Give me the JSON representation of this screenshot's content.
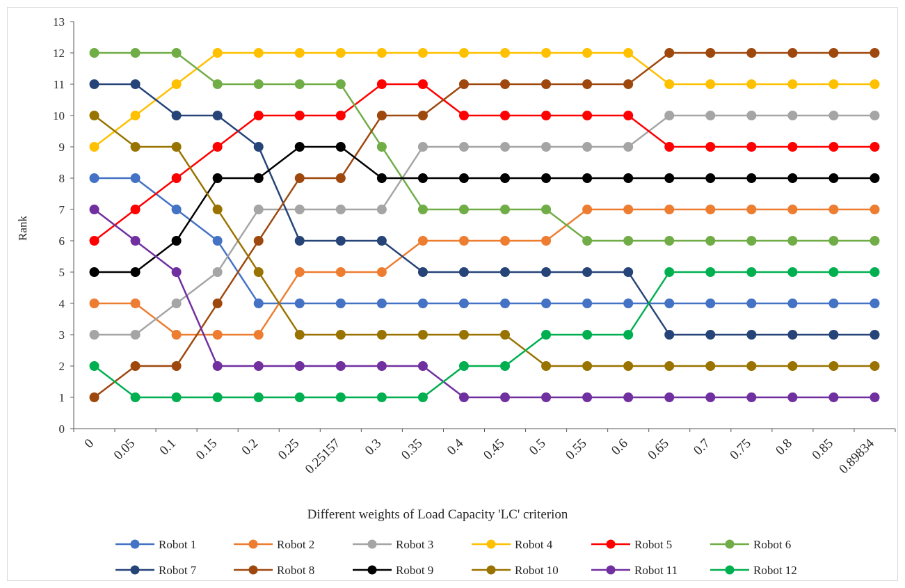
{
  "chart_data": {
    "type": "line",
    "title": "",
    "xlabel": "Different weights of Load Capacity 'LC' criterion",
    "ylabel": "Rank",
    "ylim": [
      0,
      13
    ],
    "yticks": [
      "0",
      "1",
      "2",
      "3",
      "4",
      "5",
      "6",
      "7",
      "8",
      "9",
      "10",
      "11",
      "12",
      "13"
    ],
    "grid": false,
    "legend_position": "bottom",
    "categories": [
      "0",
      "0.05",
      "0.1",
      "0.15",
      "0.2",
      "0.25",
      "0.25157",
      "0.3",
      "0.35",
      "0.4",
      "0.45",
      "0.5",
      "0.55",
      "0.6",
      "0.65",
      "0.7",
      "0.75",
      "0.8",
      "0.85",
      "0.89834"
    ],
    "series": [
      {
        "name": "Robot 1",
        "color": "#4472C4",
        "values": [
          8,
          8,
          7,
          6,
          4,
          4,
          4,
          4,
          4,
          4,
          4,
          4,
          4,
          4,
          4,
          4,
          4,
          4,
          4,
          4
        ]
      },
      {
        "name": "Robot 2",
        "color": "#ED7D31",
        "values": [
          4,
          4,
          3,
          3,
          3,
          5,
          5,
          5,
          6,
          6,
          6,
          6,
          7,
          7,
          7,
          7,
          7,
          7,
          7,
          7
        ]
      },
      {
        "name": "Robot 3",
        "color": "#A5A5A5",
        "values": [
          3,
          3,
          4,
          5,
          7,
          7,
          7,
          7,
          9,
          9,
          9,
          9,
          9,
          9,
          10,
          10,
          10,
          10,
          10,
          10
        ]
      },
      {
        "name": "Robot 4",
        "color": "#FFC000",
        "values": [
          9,
          10,
          11,
          12,
          12,
          12,
          12,
          12,
          12,
          12,
          12,
          12,
          12,
          12,
          11,
          11,
          11,
          11,
          11,
          11
        ]
      },
      {
        "name": "Robot 5",
        "color": "#FF0000",
        "values": [
          6,
          7,
          8,
          9,
          10,
          10,
          10,
          11,
          11,
          10,
          10,
          10,
          10,
          10,
          9,
          9,
          9,
          9,
          9,
          9
        ]
      },
      {
        "name": "Robot 6",
        "color": "#70AD47",
        "values": [
          12,
          12,
          12,
          11,
          11,
          11,
          11,
          9,
          7,
          7,
          7,
          7,
          6,
          6,
          6,
          6,
          6,
          6,
          6,
          6
        ]
      },
      {
        "name": "Robot 7",
        "color": "#264478",
        "values": [
          11,
          11,
          10,
          10,
          9,
          6,
          6,
          6,
          5,
          5,
          5,
          5,
          5,
          5,
          3,
          3,
          3,
          3,
          3,
          3
        ]
      },
      {
        "name": "Robot 8",
        "color": "#9E480E",
        "values": [
          1,
          2,
          2,
          4,
          6,
          8,
          8,
          10,
          10,
          11,
          11,
          11,
          11,
          11,
          12,
          12,
          12,
          12,
          12,
          12
        ]
      },
      {
        "name": "Robot 9",
        "color": "#000000",
        "values": [
          5,
          5,
          6,
          8,
          8,
          9,
          9,
          8,
          8,
          8,
          8,
          8,
          8,
          8,
          8,
          8,
          8,
          8,
          8,
          8
        ]
      },
      {
        "name": "Robot 10",
        "color": "#997300",
        "values": [
          10,
          9,
          9,
          7,
          5,
          3,
          3,
          3,
          3,
          3,
          3,
          2,
          2,
          2,
          2,
          2,
          2,
          2,
          2,
          2
        ]
      },
      {
        "name": "Robot 11",
        "color": "#7030A0",
        "values": [
          7,
          6,
          5,
          2,
          2,
          2,
          2,
          2,
          2,
          1,
          1,
          1,
          1,
          1,
          1,
          1,
          1,
          1,
          1,
          1
        ]
      },
      {
        "name": "Robot 12",
        "color": "#00B050",
        "values": [
          2,
          1,
          1,
          1,
          1,
          1,
          1,
          1,
          1,
          2,
          2,
          3,
          3,
          3,
          5,
          5,
          5,
          5,
          5,
          5
        ]
      }
    ]
  }
}
